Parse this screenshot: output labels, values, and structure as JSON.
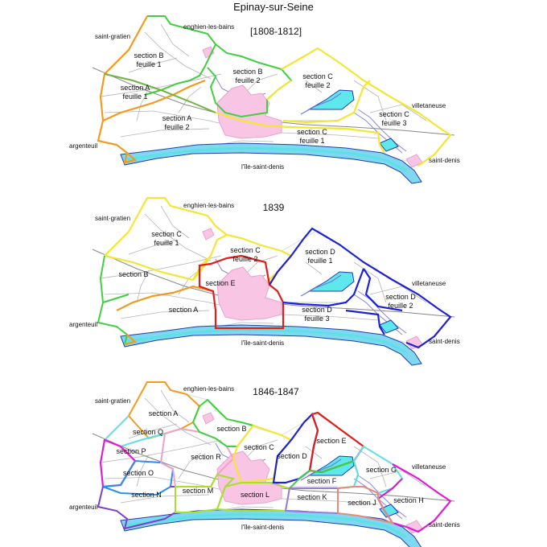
{
  "title": "Epinay-sur-Seine",
  "colors": {
    "orange": "#f39a1e",
    "green": "#3fd03f",
    "yellow": "#f3e634",
    "blue": "#1e22d6",
    "red": "#e21b1b",
    "magenta": "#e01bd6",
    "cyan": "#5de0e6",
    "purple": "#7e3ec8",
    "lightblue": "#2a8ef0",
    "pink": "#f2a0c8",
    "lime": "#a6e02a",
    "salmon": "#e88a7a",
    "violet": "#9a7ae0",
    "river": "#7fd8f0",
    "water": "#5fe8ec",
    "builtup": "#f8c6e4"
  },
  "maps": [
    {
      "title": "[1808-1812]",
      "towns": {
        "enghien": "enghien-les-bains",
        "gratien": "saint-gratien",
        "argenteuil": "argenteuil",
        "villetaneuse": "villetaneuse",
        "denis": "saint-denis",
        "ile": "l'île-saint-denis"
      },
      "sections": [
        {
          "key": "s1a",
          "lines": [
            "section B",
            "feuille 1"
          ]
        },
        {
          "key": "s1b",
          "lines": [
            "section B",
            "feuille 2"
          ]
        },
        {
          "key": "s1c",
          "lines": [
            "section C",
            "feuille 2"
          ]
        },
        {
          "key": "s1d",
          "lines": [
            "section A",
            "feuille 1"
          ]
        },
        {
          "key": "s1e",
          "lines": [
            "section A",
            "feuille 2"
          ]
        },
        {
          "key": "s1f",
          "lines": [
            "section C",
            "feuille 1"
          ]
        },
        {
          "key": "s1g",
          "lines": [
            "section C",
            "feuille 3"
          ]
        }
      ]
    },
    {
      "title": "1839",
      "towns": {
        "enghien": "enghien-les-bains",
        "gratien": "saint-gratien",
        "argenteuil": "argenteuil",
        "villetaneuse": "villetaneuse",
        "denis": "saint-denis",
        "ile": "l'île-saint-denis"
      },
      "sections": [
        {
          "key": "s2a",
          "lines": [
            "section C",
            "feuille 1"
          ]
        },
        {
          "key": "s2b",
          "lines": [
            "section C",
            "feuille 2"
          ]
        },
        {
          "key": "s2c",
          "lines": [
            "section D",
            "feuille 1"
          ]
        },
        {
          "key": "s2d",
          "lines": [
            "section B"
          ]
        },
        {
          "key": "s2e",
          "lines": [
            "section E"
          ]
        },
        {
          "key": "s2f",
          "lines": [
            "section A"
          ]
        },
        {
          "key": "s2g",
          "lines": [
            "section D",
            "feuille 3"
          ]
        },
        {
          "key": "s2h",
          "lines": [
            "section D",
            "feuille 2"
          ]
        }
      ]
    },
    {
      "title": "1846-1847",
      "towns": {
        "enghien": "enghien-les-bains",
        "gratien": "saint-gratien",
        "argenteuil": "argenteuil",
        "villetaneuse": "villetaneuse",
        "denis": "saint-denis",
        "ile": "l'île-saint-denis"
      },
      "sections": [
        {
          "key": "s3a",
          "lines": [
            "section A"
          ]
        },
        {
          "key": "s3b",
          "lines": [
            "section B"
          ]
        },
        {
          "key": "s3q",
          "lines": [
            "section Q"
          ]
        },
        {
          "key": "s3c",
          "lines": [
            "section C"
          ]
        },
        {
          "key": "s3e",
          "lines": [
            "section E"
          ]
        },
        {
          "key": "s3p",
          "lines": [
            "section P"
          ]
        },
        {
          "key": "s3r",
          "lines": [
            "section R"
          ]
        },
        {
          "key": "s3d",
          "lines": [
            "section D"
          ]
        },
        {
          "key": "s3o",
          "lines": [
            "section O"
          ]
        },
        {
          "key": "s3f",
          "lines": [
            "section F"
          ]
        },
        {
          "key": "s3g",
          "lines": [
            "section G"
          ]
        },
        {
          "key": "s3n",
          "lines": [
            "section N"
          ]
        },
        {
          "key": "s3m",
          "lines": [
            "section M"
          ]
        },
        {
          "key": "s3l",
          "lines": [
            "section L"
          ]
        },
        {
          "key": "s3k",
          "lines": [
            "section K"
          ]
        },
        {
          "key": "s3j",
          "lines": [
            "section J"
          ]
        },
        {
          "key": "s3h",
          "lines": [
            "section H"
          ]
        }
      ]
    }
  ]
}
